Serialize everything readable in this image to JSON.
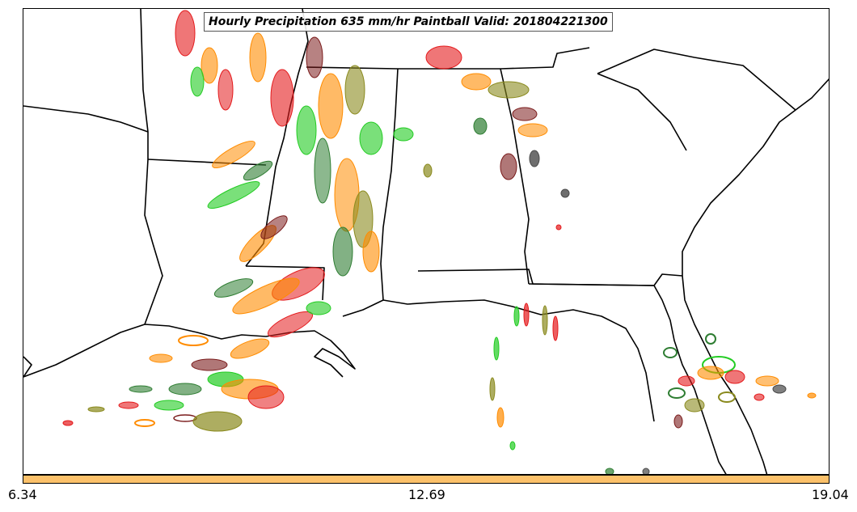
{
  "title": "Hourly Precipitation 635 mm/hr Paintball Valid: 201804221300",
  "colorbar": {
    "color": "#fcc16a",
    "tick_labels": [
      "6.34",
      "12.69",
      "19.04"
    ]
  },
  "paintball_colors": {
    "dark_green": "#2e7d32",
    "bright_green": "#22cc22",
    "red": "#e41a1c",
    "orange": "#ff8c00",
    "olive": "#8a8a1e",
    "gray": "#4a4a4a",
    "maroon": "#7b1c1c"
  }
}
